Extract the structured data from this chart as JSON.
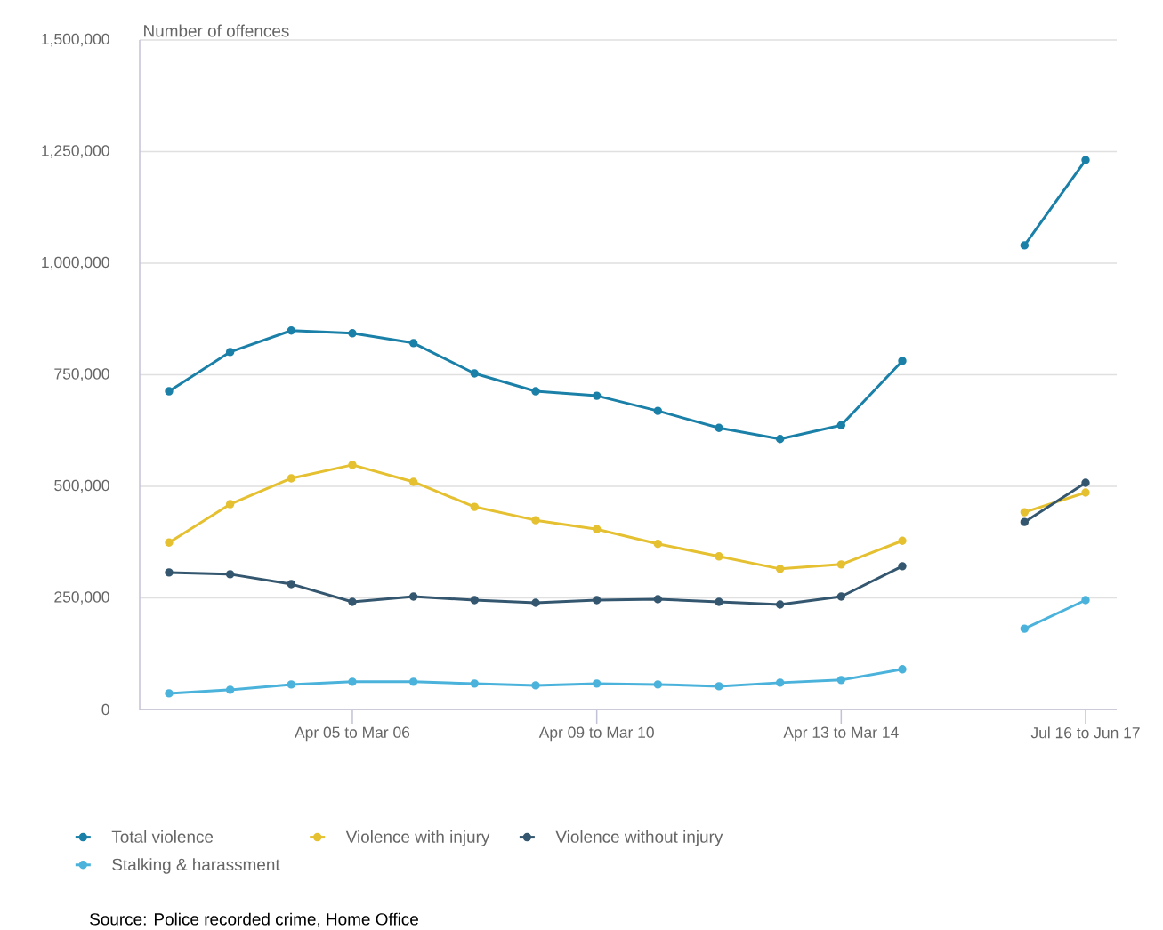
{
  "chart_data": {
    "type": "line",
    "ylabel": "Number of offences",
    "categories": [
      null,
      null,
      null,
      "Apr 05 to Mar 06",
      null,
      null,
      null,
      "Apr 09 to Mar 10",
      null,
      null,
      null,
      "Apr 13 to Mar 14",
      null,
      null,
      null,
      "Jul 16 to Jun 17"
    ],
    "series": [
      {
        "name": "Total violence",
        "color": "#1a80a8",
        "values": [
          713000,
          801000,
          849000,
          843000,
          821000,
          753000,
          713000,
          703000,
          669000,
          631000,
          606000,
          637000,
          781000,
          null,
          1040000,
          1231000
        ]
      },
      {
        "name": "Violence with injury",
        "color": "#e5c030",
        "values": [
          374000,
          460000,
          518000,
          548000,
          510000,
          454000,
          424000,
          404000,
          371000,
          343000,
          315000,
          325000,
          378000,
          null,
          442000,
          486000
        ]
      },
      {
        "name": "Violence without injury",
        "color": "#34576f",
        "values": [
          307000,
          303000,
          281000,
          241000,
          253000,
          245000,
          239000,
          245000,
          247000,
          241000,
          235000,
          253000,
          321000,
          null,
          420000,
          508000
        ]
      },
      {
        "name": "Stalking & harassment",
        "color": "#4bb3db",
        "values": [
          36000,
          44000,
          56000,
          62000,
          62000,
          58000,
          54000,
          58000,
          56000,
          52000,
          60000,
          66000,
          90000,
          null,
          181000,
          245000
        ]
      }
    ],
    "ylim": [
      0,
      1500000
    ],
    "yticks": [
      {
        "value": 0,
        "label": "0"
      },
      {
        "value": 250000,
        "label": "250,000"
      },
      {
        "value": 500000,
        "label": "500,000"
      },
      {
        "value": 750000,
        "label": "750,000"
      },
      {
        "value": 1000000,
        "label": "1,000,000"
      },
      {
        "value": 1250000,
        "label": "1,250,000"
      },
      {
        "value": 1500000,
        "label": "1,500,000"
      }
    ],
    "grid": "y",
    "legend": "bottom",
    "marker": "circle",
    "line_style": "solid",
    "annotations": [
      "Source: Police recorded crime, Home Office"
    ]
  }
}
